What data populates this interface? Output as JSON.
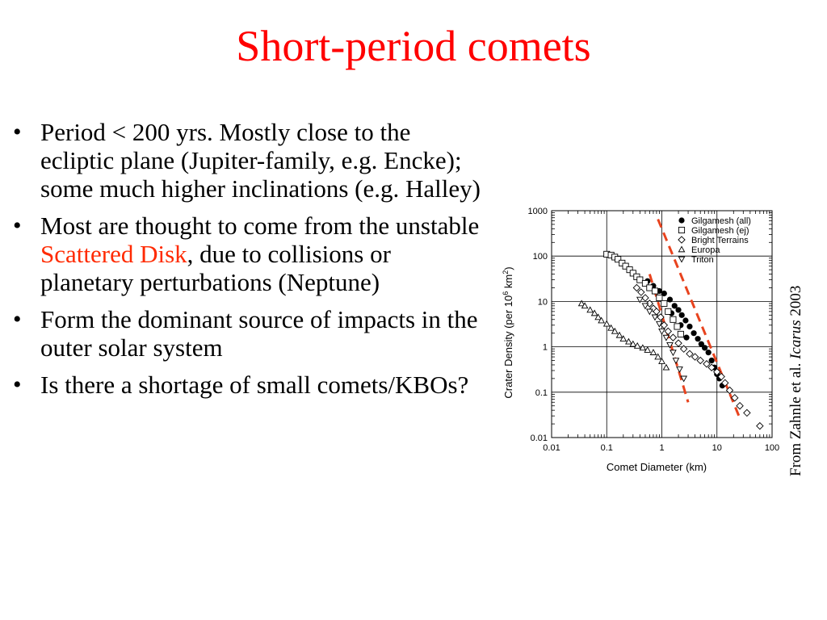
{
  "slide": {
    "title": "Short-period comets",
    "bullets": [
      {
        "text": "Period < 200 yrs. Mostly close to the ecliptic plane (Jupiter-family, e.g. Encke); some much higher inclinations (e.g. Halley)"
      },
      {
        "pre": "Most are thought to come from the unstable ",
        "highlight": "Scattered Disk",
        "post": ", due to collisions or planetary perturbations (Neptune)"
      },
      {
        "text": "Form the dominant source of impacts in the outer solar system"
      },
      {
        "text": "Is there a shortage of small comets/KBOs?"
      }
    ],
    "credit": {
      "pre": "From Zahnle et al. ",
      "journal": "Icarus",
      "post": " 2003"
    }
  },
  "colors": {
    "title": "#ff0000",
    "highlight": "#ff2a00",
    "fit_line": "#e8431e"
  },
  "chart_data": {
    "type": "scatter",
    "xscale": "log",
    "yscale": "log",
    "xlim": [
      0.01,
      100
    ],
    "ylim": [
      0.01,
      1000
    ],
    "xlabel": "Comet Diameter (km)",
    "ylabel_pre": "Crater Density (per 10",
    "ylabel_sup1": "6",
    "ylabel_mid": " km",
    "ylabel_sup2": "2",
    "ylabel_post": ")",
    "xticks": [
      {
        "v": 0.01,
        "label": "0.01"
      },
      {
        "v": 0.1,
        "label": "0.1"
      },
      {
        "v": 1,
        "label": "1"
      },
      {
        "v": 10,
        "label": "10"
      },
      {
        "v": 100,
        "label": "100"
      }
    ],
    "yticks": [
      {
        "v": 0.01,
        "label": "0.01"
      },
      {
        "v": 0.1,
        "label": "0.1"
      },
      {
        "v": 1,
        "label": "1"
      },
      {
        "v": 10,
        "label": "10"
      },
      {
        "v": 100,
        "label": "100"
      },
      {
        "v": 1000,
        "label": "1000"
      }
    ],
    "grid": true,
    "legend_position": "top-right",
    "series": [
      {
        "name": "Gilgamesh (all)",
        "marker": "filled-circle",
        "points": [
          [
            0.55,
            28
          ],
          [
            0.7,
            22
          ],
          [
            0.9,
            17
          ],
          [
            1.1,
            15
          ],
          [
            1.4,
            11
          ],
          [
            1.7,
            8
          ],
          [
            2.0,
            6.5
          ],
          [
            2.3,
            5.0
          ],
          [
            2.7,
            3.8
          ],
          [
            3.2,
            2.8
          ],
          [
            3.8,
            2.0
          ],
          [
            4.5,
            1.5
          ],
          [
            5.2,
            1.15
          ],
          [
            6.0,
            0.95
          ],
          [
            7.0,
            0.75
          ],
          [
            8.0,
            0.5
          ],
          [
            9.0,
            0.35
          ],
          [
            10,
            0.25
          ],
          [
            11,
            0.2
          ],
          [
            12.5,
            0.14
          ],
          [
            1.5,
            5.5
          ],
          [
            2.2,
            3.0
          ],
          [
            2.8,
            1.6
          ]
        ]
      },
      {
        "name": "Gilgamesh (ej)",
        "marker": "open-square",
        "points": [
          [
            0.1,
            110
          ],
          [
            0.12,
            105
          ],
          [
            0.14,
            95
          ],
          [
            0.16,
            85
          ],
          [
            0.19,
            70
          ],
          [
            0.22,
            60
          ],
          [
            0.26,
            50
          ],
          [
            0.3,
            42
          ],
          [
            0.35,
            35
          ],
          [
            0.4,
            30
          ],
          [
            0.5,
            25
          ],
          [
            0.6,
            20
          ],
          [
            0.75,
            17
          ],
          [
            0.9,
            12
          ],
          [
            1.1,
            9
          ],
          [
            1.3,
            6
          ],
          [
            1.6,
            4.0
          ],
          [
            1.9,
            2.8
          ],
          [
            2.2,
            1.9
          ]
        ]
      },
      {
        "name": "Bright Terrains",
        "marker": "open-diamond",
        "points": [
          [
            0.35,
            20
          ],
          [
            0.42,
            16
          ],
          [
            0.5,
            12
          ],
          [
            0.6,
            9
          ],
          [
            0.7,
            7
          ],
          [
            0.8,
            6
          ],
          [
            0.95,
            4.5
          ],
          [
            1.1,
            3.0
          ],
          [
            1.3,
            2.2
          ],
          [
            1.6,
            1.6
          ],
          [
            2.0,
            1.2
          ],
          [
            2.5,
            0.9
          ],
          [
            3.2,
            0.7
          ],
          [
            4.0,
            0.6
          ],
          [
            5.0,
            0.5
          ],
          [
            6.5,
            0.42
          ],
          [
            8.0,
            0.35
          ],
          [
            10,
            0.28
          ],
          [
            12,
            0.22
          ],
          [
            14,
            0.16
          ],
          [
            17,
            0.11
          ],
          [
            21,
            0.075
          ],
          [
            26,
            0.05
          ],
          [
            35,
            0.035
          ],
          [
            60,
            0.018
          ]
        ]
      },
      {
        "name": "Europa",
        "marker": "open-triangle-up",
        "points": [
          [
            0.035,
            9
          ],
          [
            0.04,
            8
          ],
          [
            0.05,
            6.5
          ],
          [
            0.06,
            5.5
          ],
          [
            0.07,
            4.5
          ],
          [
            0.08,
            3.8
          ],
          [
            0.1,
            3.2
          ],
          [
            0.12,
            2.6
          ],
          [
            0.14,
            2.2
          ],
          [
            0.17,
            1.8
          ],
          [
            0.2,
            1.5
          ],
          [
            0.25,
            1.3
          ],
          [
            0.3,
            1.15
          ],
          [
            0.36,
            1.05
          ],
          [
            0.45,
            0.95
          ],
          [
            0.55,
            0.85
          ],
          [
            0.7,
            0.75
          ],
          [
            0.85,
            0.6
          ],
          [
            1.0,
            0.48
          ],
          [
            1.2,
            0.35
          ]
        ]
      },
      {
        "name": "Triton",
        "marker": "open-triangle-down",
        "points": [
          [
            0.4,
            11
          ],
          [
            0.5,
            8
          ],
          [
            0.6,
            6
          ],
          [
            0.75,
            4.5
          ],
          [
            0.9,
            3.2
          ],
          [
            1.0,
            2.2
          ],
          [
            1.2,
            1.6
          ],
          [
            1.4,
            1.1
          ],
          [
            1.6,
            0.75
          ],
          [
            1.8,
            0.5
          ],
          [
            2.1,
            0.32
          ],
          [
            2.5,
            0.2
          ]
        ]
      }
    ],
    "fit_lines": [
      {
        "from": [
          0.6,
          40
        ],
        "to": [
          3.0,
          0.06
        ]
      },
      {
        "from": [
          0.85,
          650
        ],
        "to": [
          25,
          0.03
        ]
      }
    ]
  }
}
